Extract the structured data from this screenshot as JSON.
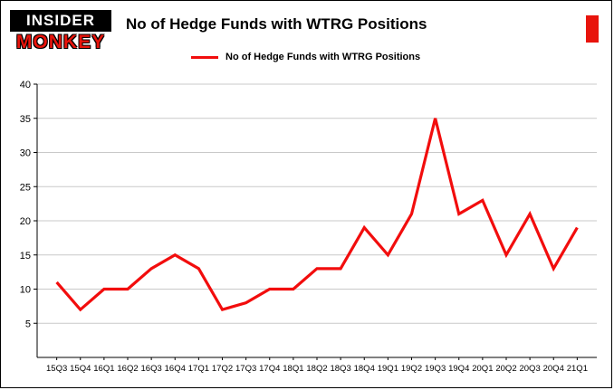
{
  "branding": {
    "logo_line1": "INSIDER",
    "logo_line2": "MONKEY",
    "accent_red": "#e8140c"
  },
  "header": {
    "title": "No of Hedge Funds with WTRG Positions"
  },
  "legend": {
    "label": "No of Hedge Funds with WTRG Positions",
    "line_color": "#f20d0d"
  },
  "chart_data": {
    "type": "line",
    "title": "No of Hedge Funds with WTRG Positions",
    "categories": [
      "15Q3",
      "15Q4",
      "16Q1",
      "16Q2",
      "16Q3",
      "16Q4",
      "17Q1",
      "17Q2",
      "17Q3",
      "17Q4",
      "18Q1",
      "18Q2",
      "18Q3",
      "18Q4",
      "19Q1",
      "19Q2",
      "19Q3",
      "19Q4",
      "20Q1",
      "20Q2",
      "20Q3",
      "20Q4",
      "21Q1"
    ],
    "values": [
      11,
      7,
      10,
      10,
      13,
      15,
      13,
      7,
      8,
      10,
      10,
      13,
      13,
      19,
      15,
      21,
      35,
      21,
      23,
      15,
      21,
      13,
      19
    ],
    "xlabel": "",
    "ylabel": "",
    "ylim": [
      0,
      40
    ],
    "ytick_interval": 5,
    "grid": true,
    "grid_color": "#c9c9c9",
    "axis_color": "#000000",
    "line_color": "#f20d0d",
    "legend_position": "top"
  }
}
